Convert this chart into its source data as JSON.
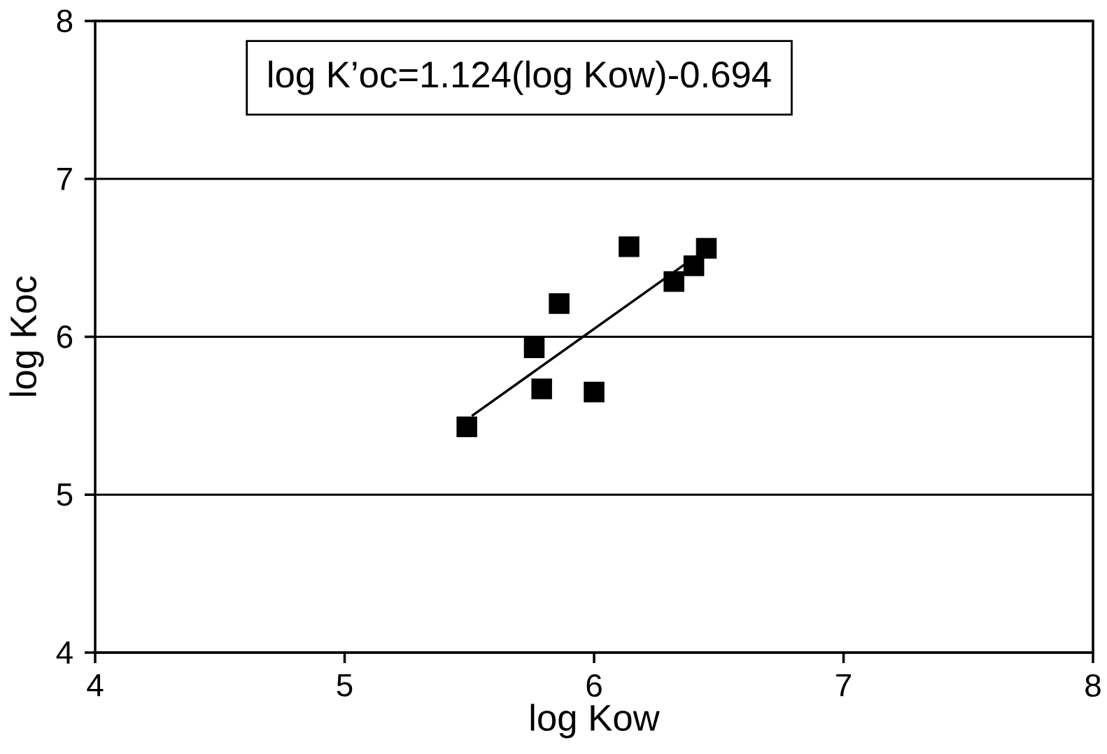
{
  "chart_data": {
    "type": "scatter",
    "xlabel": "log Kow",
    "ylabel": "log Koc",
    "annotations": [
      "log K’oc=1.124(log Kow)-0.694"
    ],
    "xlim": [
      4,
      8
    ],
    "ylim": [
      4,
      8
    ],
    "xticks": [
      4,
      5,
      6,
      7,
      8
    ],
    "yticks": [
      4,
      5,
      6,
      7,
      8
    ],
    "grid": "y",
    "marker": "square",
    "series": [
      {
        "color": "#000000",
        "x": [
          5.49,
          5.76,
          5.79,
          5.86,
          6.0,
          6.14,
          6.32,
          6.4,
          6.45
        ],
        "values": [
          5.43,
          5.93,
          5.67,
          6.21,
          5.65,
          6.57,
          6.35,
          6.45,
          6.56
        ]
      },
      {
        "type": "line",
        "color": "#000000",
        "marker": "none",
        "line_style": "solid",
        "x": [
          5.51,
          6.41
        ],
        "values": [
          5.499,
          6.511
        ]
      }
    ]
  }
}
